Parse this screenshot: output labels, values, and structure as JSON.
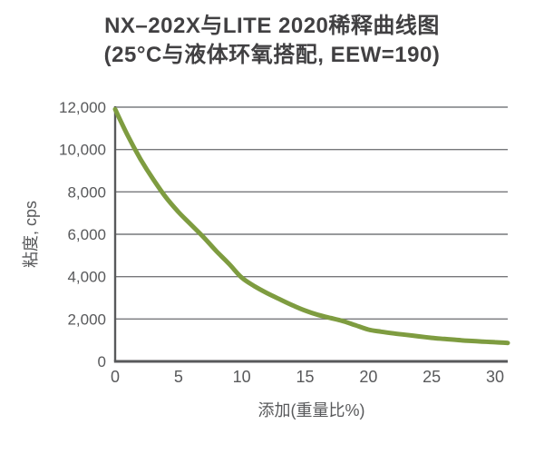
{
  "chart_data": {
    "type": "line",
    "title": "NX–202X与LITE 2020稀释曲线图",
    "subtitle": "(25°C与液体环氧搭配, EEW=190)",
    "xlabel": "添加(重量比%)",
    "ylabel": "粘度, cps",
    "xlim": [
      0,
      31
    ],
    "ylim": [
      0,
      12000
    ],
    "x_ticks": [
      0,
      5,
      10,
      15,
      20,
      25,
      30
    ],
    "x_tick_labels": [
      "0",
      "5",
      "10",
      "15",
      "20",
      "25",
      "30"
    ],
    "y_ticks": [
      0,
      2000,
      4000,
      6000,
      8000,
      10000,
      12000
    ],
    "y_tick_labels": [
      "0",
      "2,000",
      "4,000",
      "6,000",
      "8,000",
      "10,000",
      "12,000"
    ],
    "grid": "horizontal",
    "legend": "none",
    "series": [
      {
        "color": "#7e9c40",
        "x": [
          0,
          1,
          2,
          3,
          4,
          5,
          6,
          7,
          8,
          9,
          10,
          11,
          12,
          13,
          14,
          15,
          16,
          17,
          18,
          19,
          20,
          21,
          22,
          23,
          24,
          25,
          26,
          27,
          28,
          29,
          30,
          31
        ],
        "y": [
          11900,
          10650,
          9550,
          8600,
          7750,
          7050,
          6450,
          5850,
          5200,
          4600,
          3950,
          3550,
          3220,
          2930,
          2650,
          2400,
          2200,
          2050,
          1900,
          1700,
          1500,
          1400,
          1320,
          1250,
          1180,
          1110,
          1060,
          1010,
          970,
          935,
          905,
          870
        ]
      }
    ]
  },
  "colors": {
    "curve": "#7e9c40",
    "grid": "#77787b",
    "grid_top": "#9b9da0",
    "axis": "#58595b",
    "title_text": "#414042",
    "tick_text": "#58595b"
  }
}
